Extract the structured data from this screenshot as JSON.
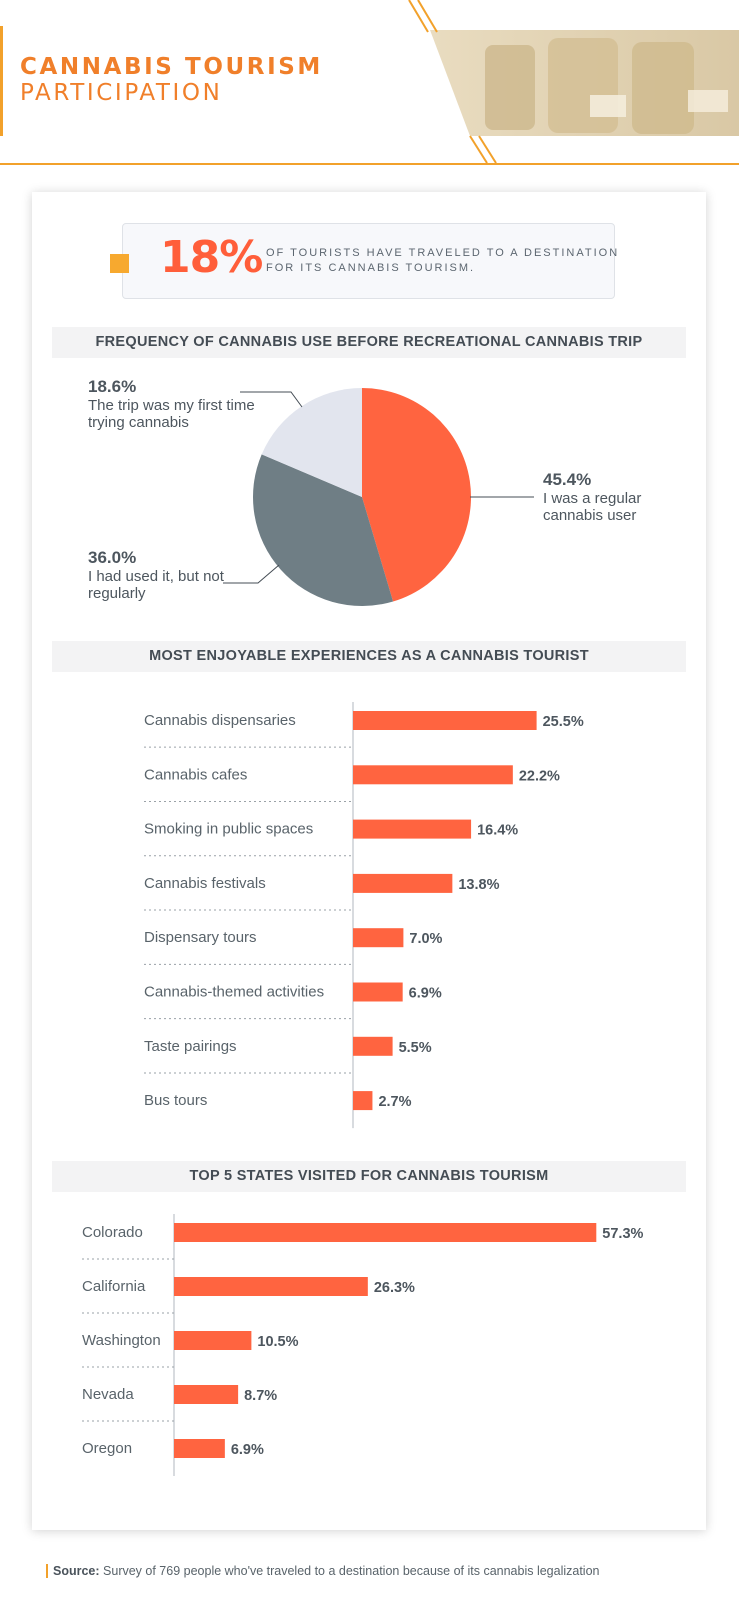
{
  "header": {
    "title_line1": "CANNABIS TOURISM",
    "title_line2": "PARTICIPATION"
  },
  "highlight": {
    "value": "18%",
    "text": "OF TOURISTS HAVE TRAVELED TO A DESTINATION FOR ITS CANNABIS TOURISM."
  },
  "colors": {
    "accent_orange": "#f2a12b",
    "title_orange": "#f07f2a",
    "bar_red": "#ff6440",
    "pie_slate": "#6f7e85",
    "pie_light": "#e2e5ee"
  },
  "chart_data": [
    {
      "type": "pie",
      "title": "FREQUENCY OF CANNABIS USE BEFORE RECREATIONAL CANNABIS TRIP",
      "slices": [
        {
          "label": "I was a regular cannabis user",
          "value": 45.4,
          "value_label": "45.4%",
          "color": "#ff6440"
        },
        {
          "label": "I had used it, but not regularly",
          "value": 36.0,
          "value_label": "36.0%",
          "color": "#6f7e85"
        },
        {
          "label": "The trip was my first time trying cannabis",
          "value": 18.6,
          "value_label": "18.6%",
          "color": "#e2e5ee"
        }
      ]
    },
    {
      "type": "bar",
      "orientation": "horizontal",
      "title": "MOST ENJOYABLE EXPERIENCES AS A CANNABIS TOURIST",
      "categories": [
        "Cannabis dispensaries",
        "Cannabis cafes",
        "Smoking in public spaces",
        "Cannabis festivals",
        "Dispensary tours",
        "Cannabis-themed activities",
        "Taste pairings",
        "Bus tours"
      ],
      "values": [
        25.5,
        22.2,
        16.4,
        13.8,
        7.0,
        6.9,
        5.5,
        2.7
      ],
      "value_labels": [
        "25.5%",
        "22.2%",
        "16.4%",
        "13.8%",
        "7.0%",
        "6.9%",
        "5.5%",
        "2.7%"
      ],
      "unit": "%"
    },
    {
      "type": "bar",
      "orientation": "horizontal",
      "title": "TOP 5 STATES VISITED FOR CANNABIS TOURISM",
      "categories": [
        "Colorado",
        "California",
        "Washington",
        "Nevada",
        "Oregon"
      ],
      "values": [
        57.3,
        26.3,
        10.5,
        8.7,
        6.9
      ],
      "value_labels": [
        "57.3%",
        "26.3%",
        "10.5%",
        "8.7%",
        "6.9%"
      ],
      "unit": "%"
    }
  ],
  "source": {
    "label": "Source:",
    "text": "Survey of 769 people who've traveled to a destination because of its cannabis legalization"
  }
}
